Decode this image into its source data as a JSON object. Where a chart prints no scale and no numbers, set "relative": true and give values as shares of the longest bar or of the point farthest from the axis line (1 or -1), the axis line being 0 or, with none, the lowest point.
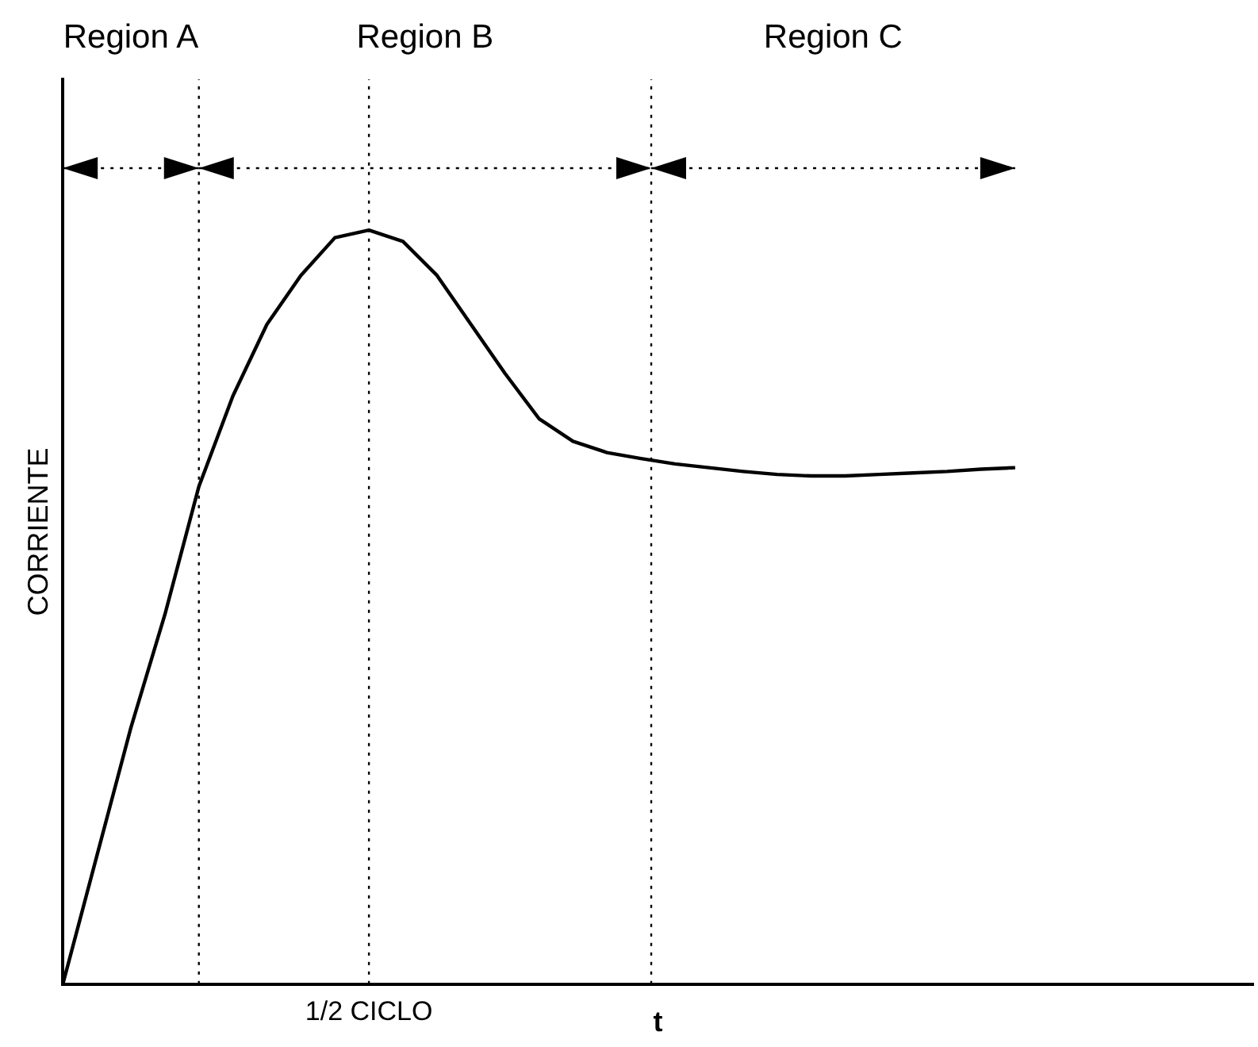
{
  "chart_data": {
    "type": "line",
    "relative": true,
    "xlabel": "t",
    "ylabel": "CORRIENTE",
    "categories": [
      null,
      null,
      null,
      null,
      null,
      null,
      null,
      null,
      null,
      null,
      null,
      null,
      null,
      null,
      null,
      null,
      null,
      null,
      null,
      null,
      null,
      null,
      null,
      null,
      null,
      null,
      null,
      null,
      null,
      null,
      null,
      null,
      null,
      null,
      null,
      null
    ],
    "series": [
      {
        "color": "#000000",
        "values": [
          0,
          0.17,
          0.34,
          0.49,
          0.66,
          0.78,
          0.875,
          0.94,
          0.99,
          1.0,
          0.985,
          0.94,
          0.875,
          0.81,
          0.75,
          0.72,
          0.705,
          0.697,
          0.69,
          0.685,
          0.68,
          0.676,
          0.674,
          0.674,
          0.676,
          0.678,
          0.68,
          0.683,
          0.685,
          null,
          null,
          null,
          null,
          null,
          null,
          null
        ]
      }
    ],
    "annotations": [
      "Region A",
      "Region B",
      "Region C",
      "1/2 CICLO"
    ],
    "tick_labels": false,
    "grid": false,
    "legend": false,
    "marker": "none",
    "line_style": "solid"
  }
}
